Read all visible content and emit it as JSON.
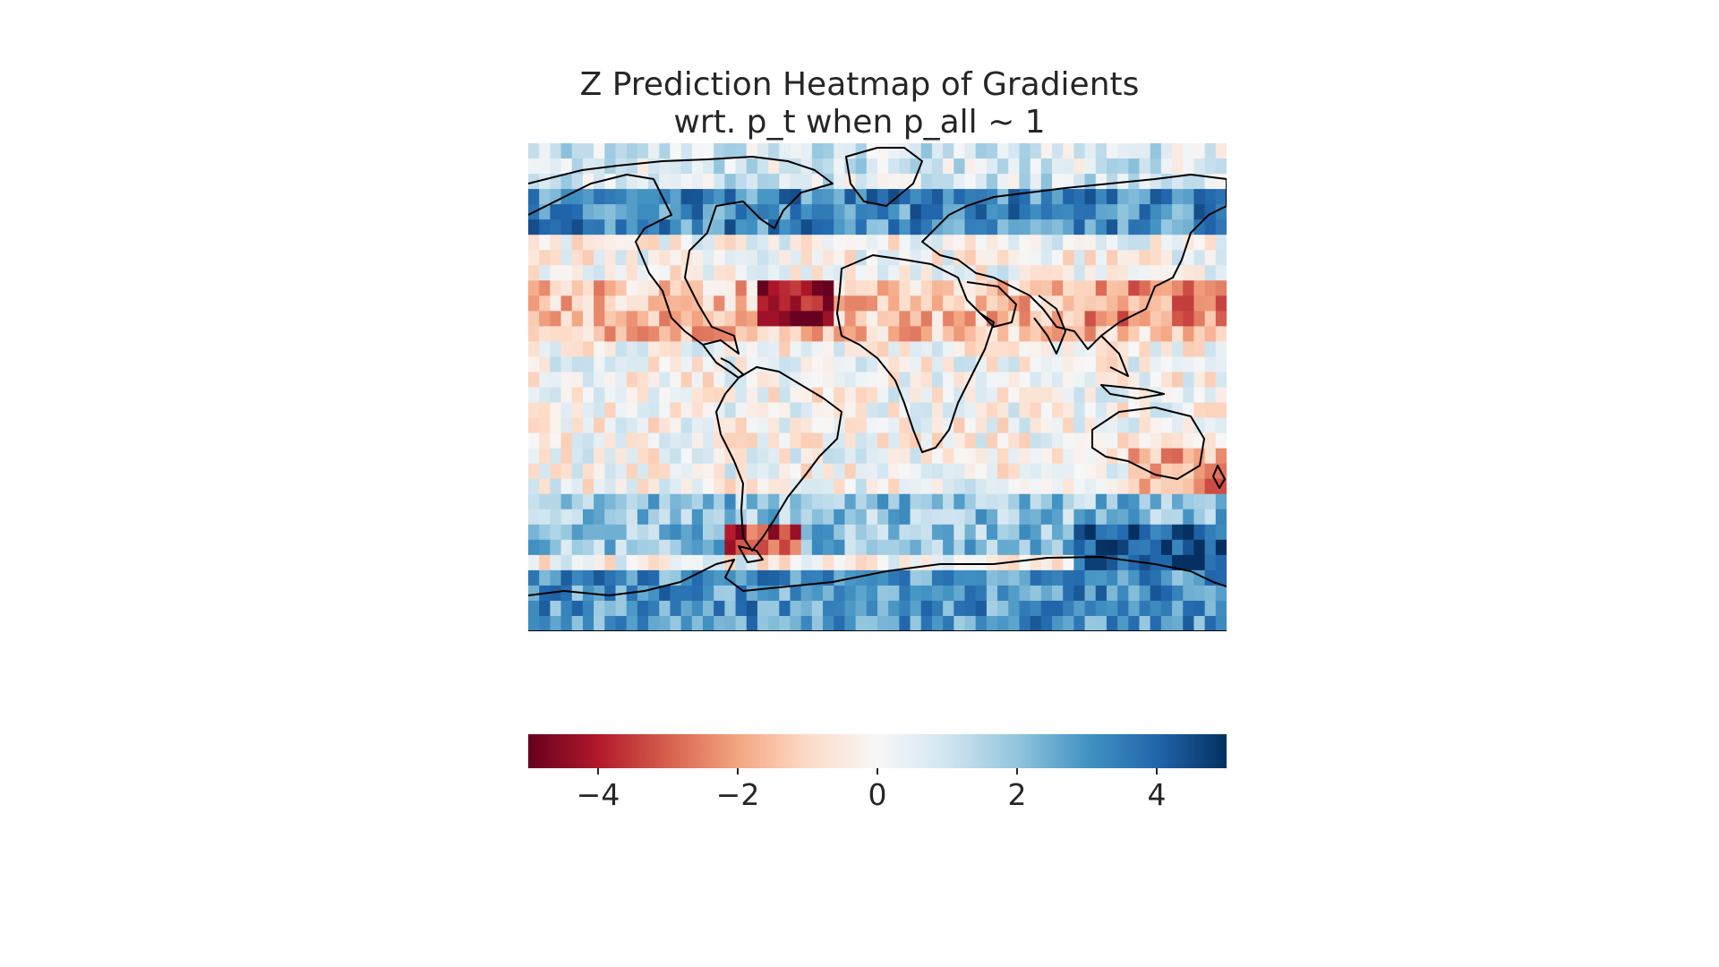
{
  "chart_data": {
    "type": "heatmap",
    "title_lines": [
      "Z Prediction Heatmap of Gradients",
      "wrt. p_t when p_all ~ 1"
    ],
    "colormap": "RdBu",
    "color_range": [
      -5,
      5
    ],
    "colorbar": {
      "orientation": "horizontal",
      "ticks": [
        -4,
        -2,
        0,
        2,
        4
      ],
      "tick_labels": [
        "−4",
        "−2",
        "0",
        "2",
        "4"
      ]
    },
    "grid_rows": 32,
    "grid_cols": 64,
    "background": "world-coastline-map",
    "regions": [
      {
        "lon": [
          -180,
          180
        ],
        "lat": [
          55,
          72
        ],
        "value": 3.2
      },
      {
        "lon": [
          -180,
          180
        ],
        "lat": [
          75,
          90
        ],
        "value": 0.8
      },
      {
        "lon": [
          -180,
          180
        ],
        "lat": [
          15,
          40
        ],
        "value": -1.4
      },
      {
        "lon": [
          -60,
          -20
        ],
        "lat": [
          20,
          40
        ],
        "value": -4.5
      },
      {
        "lon": [
          100,
          180
        ],
        "lat": [
          22,
          40
        ],
        "value": -2.2
      },
      {
        "lon": [
          130,
          180
        ],
        "lat": [
          -40,
          -20
        ],
        "value": -2.0
      },
      {
        "lon": [
          -180,
          180
        ],
        "lat": [
          -60,
          -40
        ],
        "value": 2.0
      },
      {
        "lon": [
          -80,
          -40
        ],
        "lat": [
          -62,
          -50
        ],
        "value": -3.5
      },
      {
        "lon": [
          100,
          180
        ],
        "lat": [
          -75,
          -52
        ],
        "value": 4.5
      },
      {
        "lon": [
          -180,
          180
        ],
        "lat": [
          -90,
          -68
        ],
        "value": 3.0
      }
    ]
  }
}
